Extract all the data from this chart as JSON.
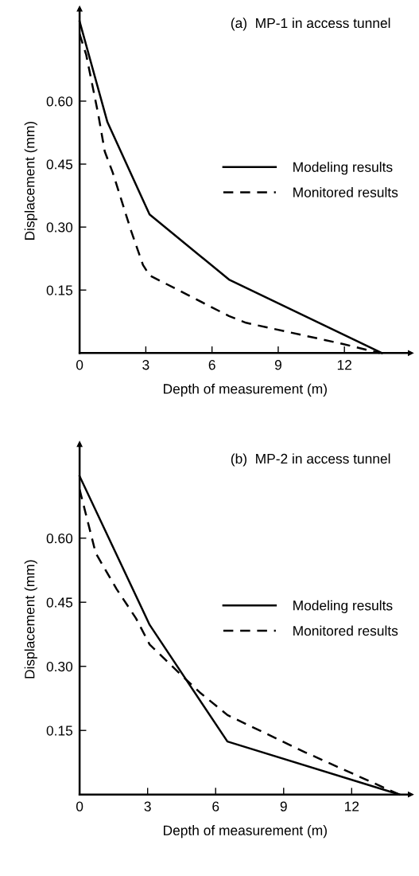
{
  "chart_data": [
    {
      "type": "line",
      "title": "(a)  MP-1 in access tunnel",
      "xlabel": "Depth of measurement (m)",
      "ylabel": "Displacement (mm)",
      "xlim": [
        0,
        15
      ],
      "ylim": [
        0,
        0.82
      ],
      "xticks": [
        0,
        3,
        6,
        9,
        12
      ],
      "yticks": [
        {
          "value": 0.15,
          "label": "0.15"
        },
        {
          "value": 0.3,
          "label": "0.30"
        },
        {
          "value": 0.45,
          "label": "0.45"
        },
        {
          "value": 0.6,
          "label": "0.60"
        }
      ],
      "legend": "right",
      "grid": false,
      "marker": "none",
      "series": [
        {
          "name": "Modeling results",
          "color": "#000000",
          "line_style": "solid",
          "x": [
            0,
            1.26,
            3.17,
            6.77,
            13.7
          ],
          "values": [
            0.79,
            0.55,
            0.33,
            0.175,
            0
          ]
        },
        {
          "name": "Monitored results",
          "color": "#000000",
          "line_style": "dashed",
          "x": [
            0,
            0.3,
            0.84,
            1.14,
            1.5,
            2.34,
            2.87,
            3.17,
            6.77,
            7.54,
            11.9,
            13.6
          ],
          "values": [
            0.76,
            0.71,
            0.57,
            0.48,
            0.43,
            0.29,
            0.21,
            0.185,
            0.088,
            0.072,
            0.022,
            0
          ]
        }
      ]
    },
    {
      "type": "line",
      "title": "(b)  MP-2 in access tunnel",
      "xlabel": "Depth of measurement (m)",
      "ylabel": "Displacement (mm)",
      "xlim": [
        0,
        14.6
      ],
      "ylim": [
        0,
        0.82
      ],
      "xticks": [
        0,
        3,
        6,
        9,
        12
      ],
      "yticks": [
        {
          "value": 0.15,
          "label": "0.15"
        },
        {
          "value": 0.3,
          "label": "0.30"
        },
        {
          "value": 0.45,
          "label": "0.45"
        },
        {
          "value": 0.6,
          "label": "0.60"
        }
      ],
      "legend": "right",
      "grid": false,
      "marker": "none",
      "series": [
        {
          "name": "Modeling results",
          "color": "#000000",
          "line_style": "solid",
          "x": [
            0,
            3.09,
            6.52,
            14.1
          ],
          "values": [
            0.745,
            0.397,
            0.124,
            0
          ]
        },
        {
          "name": "Monitored results",
          "color": "#000000",
          "line_style": "dashed",
          "x": [
            0,
            0.71,
            1.63,
            2.48,
            3.09,
            4.44,
            5.3,
            6.52,
            9.94,
            14.1
          ],
          "values": [
            0.714,
            0.565,
            0.481,
            0.413,
            0.351,
            0.282,
            0.239,
            0.186,
            0.099,
            0
          ]
        }
      ]
    }
  ]
}
